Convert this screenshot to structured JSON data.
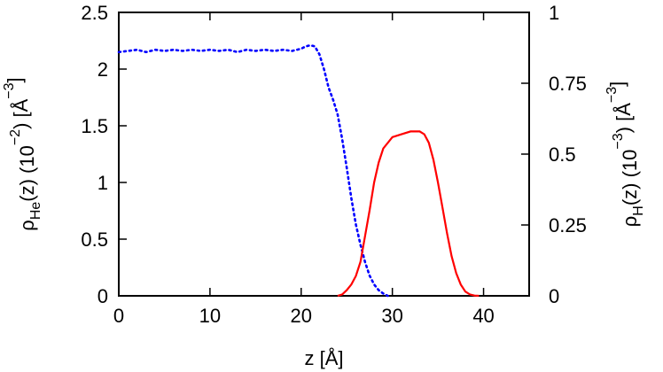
{
  "chart_data": {
    "type": "line",
    "xlabel": "z [Å]",
    "ylabel_left": {
      "main": "ρ",
      "sub": "He",
      "rest": "(z) (10",
      "sup": "−2",
      "rest2": ") [Å",
      "sup2": "−3",
      "rest3": "]"
    },
    "ylabel_right": {
      "main": "ρ",
      "sub": "H",
      "rest": "(z) (10",
      "sup": "−3",
      "rest2": ") [Å",
      "sup2": "−3",
      "rest3": "]"
    },
    "xlim": [
      0,
      45
    ],
    "ylim_left": [
      0,
      2.5
    ],
    "ylim_right": [
      0,
      1
    ],
    "x_ticks": [
      "0",
      "10",
      "20",
      "30",
      "40"
    ],
    "y_left_ticks": [
      "0",
      "0.5",
      "1",
      "1.5",
      "2",
      "2.5"
    ],
    "y_right_ticks": [
      "0",
      "0.25",
      "0.5",
      "0.75",
      "1"
    ],
    "grid": false,
    "legend": "none",
    "series": [
      {
        "axis": "left",
        "style": "dotted",
        "color": "#0000ff",
        "x": [
          0,
          1,
          2,
          3,
          4,
          5,
          6,
          7,
          8,
          9,
          10,
          11,
          12,
          13,
          14,
          15,
          16,
          17,
          18,
          19,
          20,
          20.5,
          21,
          21.5,
          22,
          22.5,
          23,
          23.5,
          24,
          24.5,
          25,
          25.5,
          26,
          26.5,
          27,
          27.5,
          28,
          28.5,
          29,
          29.5
        ],
        "y": [
          2.15,
          2.16,
          2.17,
          2.15,
          2.17,
          2.16,
          2.17,
          2.16,
          2.17,
          2.16,
          2.17,
          2.16,
          2.17,
          2.15,
          2.17,
          2.16,
          2.17,
          2.16,
          2.17,
          2.16,
          2.18,
          2.2,
          2.21,
          2.2,
          2.13,
          2.0,
          1.84,
          1.73,
          1.6,
          1.38,
          1.13,
          0.86,
          0.63,
          0.45,
          0.3,
          0.18,
          0.1,
          0.05,
          0.02,
          0.0
        ]
      },
      {
        "axis": "right",
        "style": "solid",
        "color": "#ff0000",
        "x": [
          24,
          24.5,
          25,
          25.5,
          26,
          26.5,
          27,
          27.5,
          28,
          28.5,
          29,
          30,
          31,
          32,
          33,
          33.5,
          34,
          34.5,
          35,
          35.5,
          36,
          36.5,
          37,
          37.5,
          38,
          38.5,
          39,
          39.5
        ],
        "y": [
          0.0,
          0.005,
          0.02,
          0.04,
          0.07,
          0.12,
          0.21,
          0.3,
          0.4,
          0.47,
          0.52,
          0.56,
          0.57,
          0.58,
          0.58,
          0.57,
          0.54,
          0.48,
          0.4,
          0.31,
          0.22,
          0.14,
          0.08,
          0.04,
          0.015,
          0.005,
          0.001,
          0.0
        ]
      }
    ]
  }
}
